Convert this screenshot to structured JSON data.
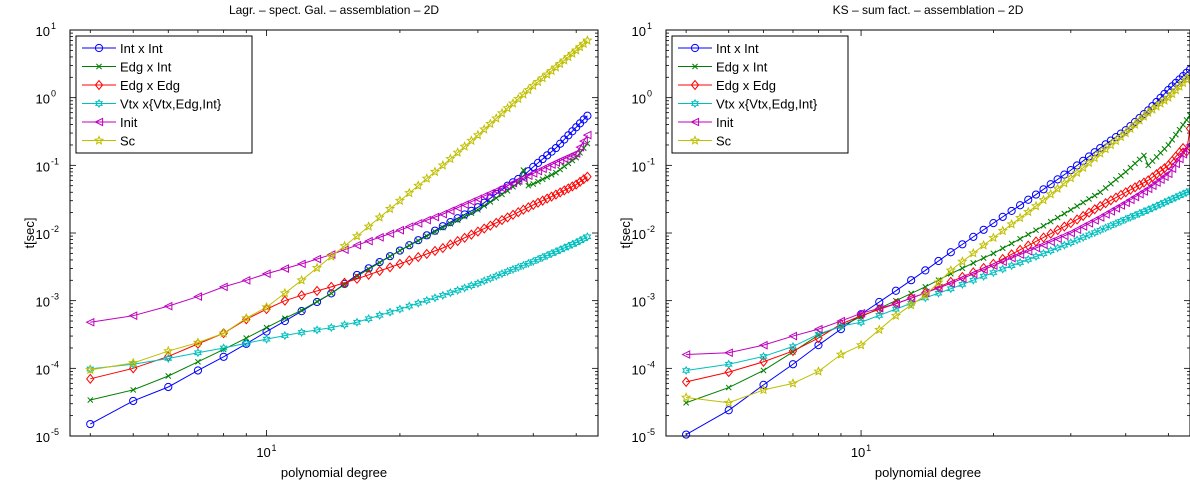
{
  "figure": {
    "background": "#ffffff"
  },
  "chart_data": [
    {
      "type": "line",
      "title": "Lagr. – spect. Gal. – assemblation  – 2D",
      "xlabel": "polynomial degree",
      "ylabel": "t[sec]",
      "xscale": "log",
      "yscale": "log",
      "xlim": [
        3.6,
        56
      ],
      "ylim": [
        1e-05,
        10
      ],
      "xticks": [
        {
          "v": 10,
          "base": "10",
          "exp": "1"
        }
      ],
      "yticks": [
        {
          "v": 1e-05,
          "base": "10",
          "exp": "-5"
        },
        {
          "v": 0.0001,
          "base": "10",
          "exp": "-4"
        },
        {
          "v": 0.001,
          "base": "10",
          "exp": "-3"
        },
        {
          "v": 0.01,
          "base": "10",
          "exp": "-2"
        },
        {
          "v": 0.1,
          "base": "10",
          "exp": "-1"
        },
        {
          "v": 1,
          "base": "10",
          "exp": "0"
        },
        {
          "v": 10,
          "base": "10",
          "exp": "1"
        }
      ],
      "legend_position": "top-left",
      "x_range": [
        4,
        53
      ],
      "series": [
        {
          "name": "Int x Int",
          "color": "#0000ff",
          "marker": "circle",
          "points": [
            [
              4,
              1.5e-05
            ],
            [
              5,
              3.3e-05
            ],
            [
              6,
              5.3e-05
            ],
            [
              7,
              9.3e-05
            ],
            [
              8,
              0.000148
            ],
            [
              9,
              0.00023
            ],
            [
              10,
              0.00035
            ],
            [
              11,
              0.0005
            ],
            [
              12,
              0.0007
            ],
            [
              14,
              0.00128
            ],
            [
              16,
              0.0024
            ],
            [
              20,
              0.0055
            ],
            [
              25,
              0.0126
            ],
            [
              30,
              0.024
            ],
            [
              35,
              0.05
            ],
            [
              38,
              0.07
            ],
            [
              40,
              0.095
            ],
            [
              45,
              0.18
            ],
            [
              53,
              0.54
            ]
          ]
        },
        {
          "name": "Edg x Int",
          "color": "#008000",
          "marker": "x",
          "points": [
            [
              4,
              3.4e-05
            ],
            [
              5,
              4.8e-05
            ],
            [
              6,
              7.7e-05
            ],
            [
              7,
              0.000125
            ],
            [
              8,
              0.00019
            ],
            [
              9,
              0.00028
            ],
            [
              10,
              0.0004
            ],
            [
              11,
              0.00055
            ],
            [
              12,
              0.00072
            ],
            [
              14,
              0.00128
            ],
            [
              16,
              0.0023
            ],
            [
              20,
              0.0055
            ],
            [
              25,
              0.012
            ],
            [
              30,
              0.022
            ],
            [
              35,
              0.042
            ],
            [
              37,
              0.055
            ],
            [
              38,
              0.085
            ],
            [
              39,
              0.05
            ],
            [
              40,
              0.053
            ],
            [
              45,
              0.078
            ],
            [
              50,
              0.13
            ],
            [
              53,
              0.21
            ]
          ]
        },
        {
          "name": "Edg x Edg",
          "color": "#ff0000",
          "marker": "diamond",
          "points": [
            [
              4,
              7e-05
            ],
            [
              5,
              0.0001
            ],
            [
              6,
              0.00015
            ],
            [
              7,
              0.00023
            ],
            [
              8,
              0.00033
            ],
            [
              9,
              0.00053
            ],
            [
              10,
              0.00075
            ],
            [
              11,
              0.001
            ],
            [
              12,
              0.0012
            ],
            [
              14,
              0.0016
            ],
            [
              16,
              0.0021
            ],
            [
              20,
              0.0035
            ],
            [
              25,
              0.006
            ],
            [
              30,
              0.0105
            ],
            [
              35,
              0.017
            ],
            [
              40,
              0.026
            ],
            [
              45,
              0.037
            ],
            [
              50,
              0.052
            ],
            [
              53,
              0.068
            ]
          ]
        },
        {
          "name": "Vtx x{Vtx,Edg,Int}",
          "color": "#00bfbf",
          "marker": "star6",
          "points": [
            [
              4,
              9.8e-05
            ],
            [
              5,
              0.000115
            ],
            [
              6,
              0.00014
            ],
            [
              7,
              0.00017
            ],
            [
              8,
              0.0002
            ],
            [
              9,
              0.000235
            ],
            [
              10,
              0.00027
            ],
            [
              12,
              0.00034
            ],
            [
              14,
              0.0004
            ],
            [
              16,
              0.00048
            ],
            [
              20,
              0.00075
            ],
            [
              25,
              0.0012
            ],
            [
              30,
              0.0018
            ],
            [
              35,
              0.0027
            ],
            [
              40,
              0.0038
            ],
            [
              45,
              0.0053
            ],
            [
              50,
              0.0072
            ],
            [
              53,
              0.0088
            ]
          ]
        },
        {
          "name": "Init",
          "color": "#bf00bf",
          "marker": "triangle-left",
          "points": [
            [
              4,
              0.00048
            ],
            [
              5,
              0.0006
            ],
            [
              6,
              0.00083
            ],
            [
              7,
              0.00115
            ],
            [
              8,
              0.0016
            ],
            [
              9,
              0.002
            ],
            [
              10,
              0.0025
            ],
            [
              12,
              0.0035
            ],
            [
              14,
              0.0048
            ],
            [
              16,
              0.0066
            ],
            [
              20,
              0.011
            ],
            [
              25,
              0.019
            ],
            [
              30,
              0.032
            ],
            [
              35,
              0.05
            ],
            [
              40,
              0.076
            ],
            [
              45,
              0.11
            ],
            [
              50,
              0.15
            ],
            [
              53,
              0.28
            ]
          ]
        },
        {
          "name": "Sc",
          "color": "#bfbf00",
          "marker": "star5",
          "points": [
            [
              4,
              9.5e-05
            ],
            [
              5,
              0.00012
            ],
            [
              6,
              0.00018
            ],
            [
              7,
              0.00024
            ],
            [
              8,
              0.00033
            ],
            [
              9,
              0.00055
            ],
            [
              10,
              0.0008
            ],
            [
              12,
              0.002
            ],
            [
              14,
              0.0045
            ],
            [
              16,
              0.009
            ],
            [
              20,
              0.03
            ],
            [
              25,
              0.1
            ],
            [
              30,
              0.28
            ],
            [
              35,
              0.7
            ],
            [
              40,
              1.5
            ],
            [
              45,
              2.8
            ],
            [
              50,
              5.0
            ],
            [
              53,
              7.0
            ]
          ]
        }
      ]
    },
    {
      "type": "line",
      "title": "KS – sum fact. – assemblation – 2D",
      "xlabel": "polynomial degree",
      "ylabel": "t[sec]",
      "xscale": "log",
      "yscale": "log",
      "xlim": [
        3.6,
        56
      ],
      "ylim": [
        1e-05,
        10
      ],
      "xticks": [
        {
          "v": 10,
          "base": "10",
          "exp": "1"
        }
      ],
      "yticks": [
        {
          "v": 1e-05,
          "base": "10",
          "exp": "-5"
        },
        {
          "v": 0.0001,
          "base": "10",
          "exp": "-4"
        },
        {
          "v": 0.001,
          "base": "10",
          "exp": "-3"
        },
        {
          "v": 0.01,
          "base": "10",
          "exp": "-2"
        },
        {
          "v": 0.1,
          "base": "10",
          "exp": "-1"
        },
        {
          "v": 1,
          "base": "10",
          "exp": "0"
        },
        {
          "v": 10,
          "base": "10",
          "exp": "1"
        }
      ],
      "legend_position": "top-left",
      "x_range": [
        4,
        56
      ],
      "series": [
        {
          "name": "Int x Int",
          "color": "#0000ff",
          "marker": "circle",
          "points": [
            [
              4,
              1.05e-05
            ],
            [
              5,
              2.4e-05
            ],
            [
              6,
              5.7e-05
            ],
            [
              7,
              0.000115
            ],
            [
              8,
              0.00022
            ],
            [
              9,
              0.00038
            ],
            [
              10,
              0.00063
            ],
            [
              12,
              0.0014
            ],
            [
              14,
              0.0028
            ],
            [
              16,
              0.0052
            ],
            [
              20,
              0.014
            ],
            [
              25,
              0.037
            ],
            [
              30,
              0.085
            ],
            [
              35,
              0.18
            ],
            [
              40,
              0.33
            ],
            [
              45,
              0.65
            ],
            [
              50,
              1.3
            ],
            [
              56,
              2.6
            ]
          ]
        },
        {
          "name": "Edg x Int",
          "color": "#008000",
          "marker": "x",
          "points": [
            [
              4,
              3.1e-05
            ],
            [
              5,
              5.2e-05
            ],
            [
              6,
              9.3e-05
            ],
            [
              7,
              0.000175
            ],
            [
              8,
              0.00031
            ],
            [
              9,
              0.00042
            ],
            [
              10,
              0.00058
            ],
            [
              12,
              0.001
            ],
            [
              14,
              0.0016
            ],
            [
              16,
              0.0025
            ],
            [
              20,
              0.005
            ],
            [
              25,
              0.011
            ],
            [
              30,
              0.022
            ],
            [
              35,
              0.04
            ],
            [
              40,
              0.08
            ],
            [
              44,
              0.14
            ],
            [
              45,
              0.1
            ],
            [
              50,
              0.2
            ],
            [
              56,
              0.55
            ]
          ]
        },
        {
          "name": "Edg x Edg",
          "color": "#ff0000",
          "marker": "diamond",
          "points": [
            [
              4,
              6.3e-05
            ],
            [
              5,
              8.8e-05
            ],
            [
              6,
              0.000125
            ],
            [
              7,
              0.00018
            ],
            [
              8,
              0.00028
            ],
            [
              9,
              0.00045
            ],
            [
              10,
              0.0006
            ],
            [
              12,
              0.0009
            ],
            [
              14,
              0.0013
            ],
            [
              16,
              0.0019
            ],
            [
              20,
              0.0035
            ],
            [
              25,
              0.0075
            ],
            [
              30,
              0.014
            ],
            [
              35,
              0.025
            ],
            [
              40,
              0.04
            ],
            [
              45,
              0.06
            ],
            [
              50,
              0.1
            ],
            [
              54,
              0.18
            ],
            [
              55,
              0.16
            ],
            [
              56,
              0.35
            ]
          ]
        },
        {
          "name": "Vtx x{Vtx,Edg,Int}",
          "color": "#00bfbf",
          "marker": "star6",
          "points": [
            [
              4,
              9.3e-05
            ],
            [
              5,
              0.000115
            ],
            [
              6,
              0.00015
            ],
            [
              7,
              0.00021
            ],
            [
              8,
              0.00032
            ],
            [
              9,
              0.00042
            ],
            [
              10,
              0.00048
            ],
            [
              12,
              0.00075
            ],
            [
              14,
              0.0011
            ],
            [
              16,
              0.0015
            ],
            [
              20,
              0.0026
            ],
            [
              25,
              0.0045
            ],
            [
              30,
              0.0072
            ],
            [
              35,
              0.011
            ],
            [
              40,
              0.016
            ],
            [
              45,
              0.022
            ],
            [
              50,
              0.03
            ],
            [
              56,
              0.042
            ]
          ]
        },
        {
          "name": "Init",
          "color": "#bf00bf",
          "marker": "triangle-left",
          "points": [
            [
              4,
              0.00016
            ],
            [
              5,
              0.00017
            ],
            [
              6,
              0.00022
            ],
            [
              7,
              0.0003
            ],
            [
              8,
              0.00038
            ],
            [
              9,
              0.0005
            ],
            [
              10,
              0.00065
            ],
            [
              12,
              0.0009
            ],
            [
              14,
              0.0013
            ],
            [
              16,
              0.0018
            ],
            [
              20,
              0.0033
            ],
            [
              25,
              0.006
            ],
            [
              30,
              0.01
            ],
            [
              35,
              0.017
            ],
            [
              40,
              0.028
            ],
            [
              45,
              0.045
            ],
            [
              50,
              0.075
            ],
            [
              56,
              0.2
            ]
          ]
        },
        {
          "name": "Sc",
          "color": "#bfbf00",
          "marker": "star5",
          "points": [
            [
              4,
              3.7e-05
            ],
            [
              5,
              3.1e-05
            ],
            [
              6,
              4.8e-05
            ],
            [
              7,
              6e-05
            ],
            [
              8,
              9e-05
            ],
            [
              9,
              0.00016
            ],
            [
              10,
              0.00022
            ],
            [
              12,
              0.0006
            ],
            [
              14,
              0.0012
            ],
            [
              16,
              0.0028
            ],
            [
              20,
              0.0085
            ],
            [
              25,
              0.025
            ],
            [
              30,
              0.065
            ],
            [
              35,
              0.15
            ],
            [
              40,
              0.3
            ],
            [
              45,
              0.6
            ],
            [
              50,
              1.0
            ],
            [
              56,
              2.1
            ]
          ]
        }
      ]
    }
  ]
}
